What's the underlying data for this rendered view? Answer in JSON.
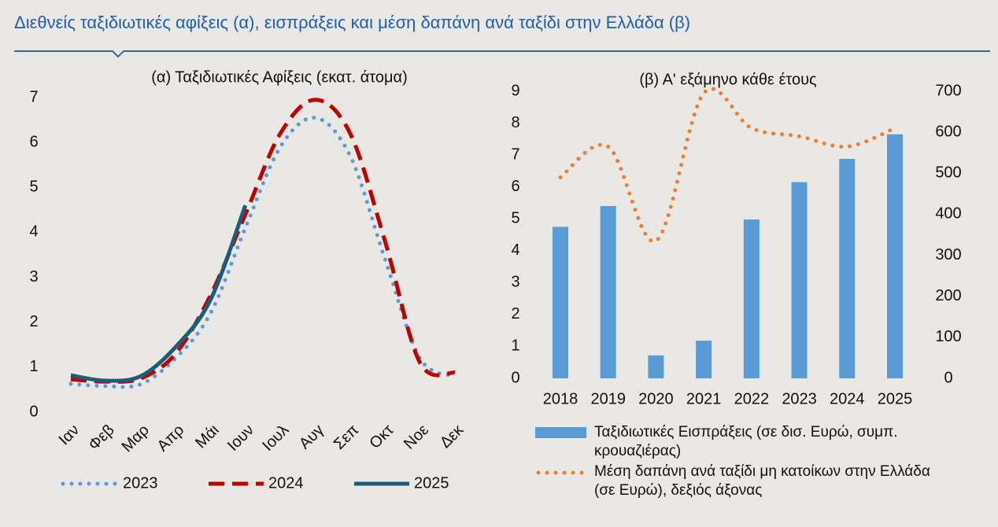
{
  "title": "Διεθνείς ταξιδιωτικές αφίξεις (α), εισπράξεις και μέση δαπάνη ανά ταξίδι στην Ελλάδα (β)",
  "chart_data": [
    {
      "type": "line",
      "title": "(α) Ταξιδιωτικές Αφίξεις (εκατ. άτομα)",
      "categories": [
        "Ιαν",
        "Φεβ",
        "Μαρ",
        "Απρ",
        "Μάι",
        "Ιουν",
        "Ιουλ",
        "Αυγ",
        "Σεπ",
        "Οκτ",
        "Νοε",
        "Δεκ"
      ],
      "ylim": [
        0,
        7
      ],
      "yticks": [
        0,
        1,
        2,
        3,
        4,
        5,
        6,
        7
      ],
      "series": [
        {
          "name": "2023",
          "color": "#5b9bd5",
          "style": "dotted",
          "values": [
            0.63,
            0.58,
            0.62,
            1.2,
            2.2,
            4.1,
            5.9,
            6.55,
            5.7,
            3.4,
            1.2,
            0.8
          ]
        },
        {
          "name": "2024",
          "color": "#c00000",
          "style": "dashed",
          "values": [
            0.73,
            0.68,
            0.75,
            1.3,
            2.6,
            4.4,
            6.2,
            6.95,
            6.2,
            3.8,
            1.1,
            0.88
          ]
        },
        {
          "name": "2025",
          "color": "#1f5c7a",
          "style": "solid",
          "values": [
            0.82,
            0.7,
            0.8,
            1.45,
            2.5,
            4.6,
            null,
            null,
            null,
            null,
            null,
            null
          ]
        }
      ]
    },
    {
      "type": "bar",
      "title": "(β) Α' εξάμηνο κάθε έτους",
      "categories": [
        "2018",
        "2019",
        "2020",
        "2021",
        "2022",
        "2023",
        "2024",
        "2025"
      ],
      "ylim": [
        0,
        9
      ],
      "yticks": [
        0,
        1,
        2,
        3,
        4,
        5,
        6,
        7,
        8,
        9
      ],
      "y2lim": [
        0,
        700
      ],
      "y2ticks": [
        0,
        100,
        200,
        300,
        400,
        500,
        600,
        700
      ],
      "series": [
        {
          "name": "Ταξιδιωτικές Εισπράξεις (σε δισ. Ευρώ, συμπ. κρουαζιέρας)",
          "type": "bar",
          "color": "#5b9bd5",
          "values": [
            4.75,
            5.4,
            0.72,
            1.18,
            4.98,
            6.15,
            6.88,
            7.65
          ]
        },
        {
          "name": "Μέση δαπάνη ανά ταξίδι μη κατοίκων στην Ελλάδα (σε Ευρώ), δεξιός άξονας",
          "type": "line",
          "axis": "y2",
          "style": "dotted",
          "color": "#ed7d31",
          "values": [
            490,
            565,
            335,
            695,
            610,
            590,
            565,
            610
          ]
        }
      ]
    }
  ]
}
